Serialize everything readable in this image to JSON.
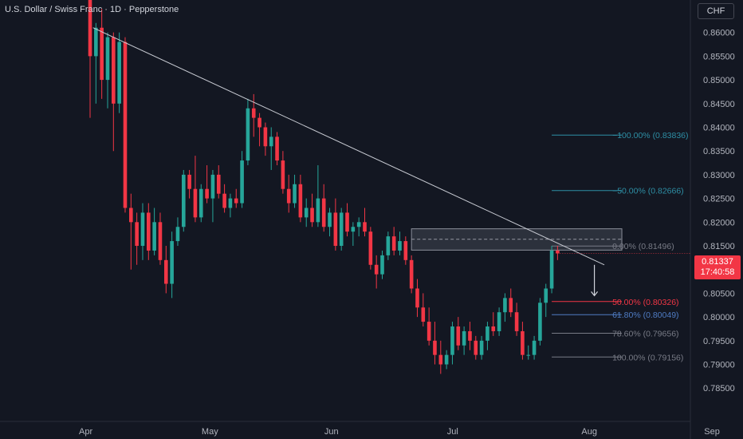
{
  "header": {
    "title": "U.S. Dollar / Swiss Franc · 1D · Pepperstone",
    "currency_button": "CHF"
  },
  "price_tag": {
    "price": "0.81337",
    "countdown": "17:40:58"
  },
  "colors": {
    "up": "#26a69a",
    "down": "#f23645",
    "background": "#131722",
    "text": "#b2b5be"
  },
  "chart_data": {
    "type": "candlestick",
    "title": "U.S. Dollar / Swiss Franc · 1D · Pepperstone",
    "ylim": [
      0.781,
      0.8655
    ],
    "y_ticks": [
      "0.86000",
      "0.85500",
      "0.85000",
      "0.84500",
      "0.84000",
      "0.83500",
      "0.83000",
      "0.82500",
      "0.82000",
      "0.81500",
      "0.81000",
      "0.80500",
      "0.80000",
      "0.79500",
      "0.79000",
      "0.78500"
    ],
    "x_labels": [
      {
        "label": "Apr",
        "bar": 0
      },
      {
        "label": "May",
        "bar": 21
      },
      {
        "label": "Jun",
        "bar": 42
      },
      {
        "label": "Jul",
        "bar": 63
      },
      {
        "label": "Aug",
        "bar": 86
      },
      {
        "label": "Sep",
        "bar": 107
      }
    ],
    "candles": [
      [
        0.872,
        0.885,
        0.842,
        0.855
      ],
      [
        0.855,
        0.862,
        0.845,
        0.861
      ],
      [
        0.861,
        0.865,
        0.846,
        0.85
      ],
      [
        0.85,
        0.86,
        0.844,
        0.859
      ],
      [
        0.859,
        0.86,
        0.835,
        0.845
      ],
      [
        0.845,
        0.86,
        0.843,
        0.858
      ],
      [
        0.858,
        0.859,
        0.822,
        0.823
      ],
      [
        0.823,
        0.826,
        0.81,
        0.82
      ],
      [
        0.82,
        0.822,
        0.811,
        0.815
      ],
      [
        0.815,
        0.824,
        0.812,
        0.822
      ],
      [
        0.822,
        0.824,
        0.812,
        0.814
      ],
      [
        0.814,
        0.823,
        0.813,
        0.82
      ],
      [
        0.82,
        0.822,
        0.811,
        0.812
      ],
      [
        0.812,
        0.815,
        0.805,
        0.807
      ],
      [
        0.807,
        0.818,
        0.804,
        0.816
      ],
      [
        0.816,
        0.821,
        0.815,
        0.819
      ],
      [
        0.819,
        0.831,
        0.818,
        0.83
      ],
      [
        0.83,
        0.831,
        0.825,
        0.827
      ],
      [
        0.827,
        0.834,
        0.82,
        0.821
      ],
      [
        0.821,
        0.828,
        0.82,
        0.827
      ],
      [
        0.827,
        0.832,
        0.824,
        0.825
      ],
      [
        0.825,
        0.831,
        0.82,
        0.83
      ],
      [
        0.83,
        0.832,
        0.825,
        0.826
      ],
      [
        0.826,
        0.828,
        0.822,
        0.823
      ],
      [
        0.823,
        0.826,
        0.821,
        0.825
      ],
      [
        0.825,
        0.827,
        0.823,
        0.824
      ],
      [
        0.824,
        0.835,
        0.823,
        0.833
      ],
      [
        0.833,
        0.846,
        0.832,
        0.844
      ],
      [
        0.844,
        0.847,
        0.838,
        0.842
      ],
      [
        0.842,
        0.843,
        0.836,
        0.84
      ],
      [
        0.84,
        0.841,
        0.834,
        0.836
      ],
      [
        0.836,
        0.84,
        0.831,
        0.838
      ],
      [
        0.838,
        0.839,
        0.832,
        0.833
      ],
      [
        0.833,
        0.835,
        0.826,
        0.827
      ],
      [
        0.827,
        0.83,
        0.822,
        0.824
      ],
      [
        0.824,
        0.83,
        0.823,
        0.828
      ],
      [
        0.828,
        0.83,
        0.82,
        0.821
      ],
      [
        0.821,
        0.825,
        0.819,
        0.823
      ],
      [
        0.823,
        0.826,
        0.819,
        0.82
      ],
      [
        0.82,
        0.832,
        0.819,
        0.825
      ],
      [
        0.825,
        0.828,
        0.818,
        0.819
      ],
      [
        0.819,
        0.823,
        0.817,
        0.822
      ],
      [
        0.822,
        0.825,
        0.814,
        0.815
      ],
      [
        0.815,
        0.823,
        0.814,
        0.822
      ],
      [
        0.822,
        0.824,
        0.817,
        0.818
      ],
      [
        0.818,
        0.82,
        0.815,
        0.819
      ],
      [
        0.819,
        0.821,
        0.817,
        0.82
      ],
      [
        0.82,
        0.823,
        0.817,
        0.818
      ],
      [
        0.818,
        0.819,
        0.81,
        0.811
      ],
      [
        0.811,
        0.813,
        0.806,
        0.809
      ],
      [
        0.809,
        0.814,
        0.808,
        0.813
      ],
      [
        0.813,
        0.818,
        0.812,
        0.817
      ],
      [
        0.817,
        0.819,
        0.813,
        0.814
      ],
      [
        0.814,
        0.818,
        0.813,
        0.816
      ],
      [
        0.816,
        0.817,
        0.811,
        0.812
      ],
      [
        0.812,
        0.813,
        0.805,
        0.806
      ],
      [
        0.806,
        0.808,
        0.8,
        0.802
      ],
      [
        0.802,
        0.805,
        0.798,
        0.799
      ],
      [
        0.799,
        0.802,
        0.794,
        0.795
      ],
      [
        0.795,
        0.799,
        0.79,
        0.792
      ],
      [
        0.792,
        0.795,
        0.788,
        0.79
      ],
      [
        0.79,
        0.793,
        0.789,
        0.792
      ],
      [
        0.792,
        0.799,
        0.79,
        0.798
      ],
      [
        0.798,
        0.8,
        0.793,
        0.794
      ],
      [
        0.794,
        0.798,
        0.792,
        0.797
      ],
      [
        0.797,
        0.799,
        0.793,
        0.795
      ],
      [
        0.795,
        0.796,
        0.791,
        0.792
      ],
      [
        0.792,
        0.796,
        0.791,
        0.795
      ],
      [
        0.795,
        0.799,
        0.793,
        0.798
      ],
      [
        0.798,
        0.801,
        0.796,
        0.797
      ],
      [
        0.797,
        0.802,
        0.796,
        0.801
      ],
      [
        0.801,
        0.805,
        0.799,
        0.804
      ],
      [
        0.804,
        0.806,
        0.8,
        0.801
      ],
      [
        0.801,
        0.803,
        0.796,
        0.797
      ],
      [
        0.797,
        0.799,
        0.791,
        0.792
      ],
      [
        0.792,
        0.794,
        0.791,
        0.792
      ],
      [
        0.792,
        0.796,
        0.791,
        0.795
      ],
      [
        0.795,
        0.804,
        0.794,
        0.803
      ],
      [
        0.803,
        0.807,
        0.8,
        0.806
      ],
      [
        0.806,
        0.815,
        0.805,
        0.814
      ],
      [
        0.814,
        0.815,
        0.812,
        0.8134
      ]
    ],
    "trendline": {
      "from": {
        "bar": 0.5,
        "price": 0.861
      },
      "to": {
        "bar": 88,
        "price": 0.811
      }
    },
    "resistance_zone": {
      "from_bar": 55,
      "to_bar": 91,
      "top": 0.8186,
      "bottom": 0.8141,
      "mid": 0.8164
    },
    "fib_levels": [
      {
        "label": "−100.00% (0.83836)",
        "price": 0.83836,
        "color": "#2e8fa5",
        "from_bar": 79,
        "to_bar": 91
      },
      {
        "label": "−50.00% (0.82666)",
        "price": 0.82666,
        "color": "#2e8fa5",
        "from_bar": 79,
        "to_bar": 91
      },
      {
        "label": "0.00% (0.81496)",
        "price": 0.81496,
        "color": "#787b86",
        "from_bar": 79,
        "to_bar": 91
      },
      {
        "label": "50.00% (0.80326)",
        "price": 0.80326,
        "color": "#f23645",
        "from_bar": 79,
        "to_bar": 91
      },
      {
        "label": "61.80% (0.80049)",
        "price": 0.80049,
        "color": "#4f7cc4",
        "from_bar": 79,
        "to_bar": 91
      },
      {
        "label": "78.60% (0.79656)",
        "price": 0.79656,
        "color": "#787b86",
        "from_bar": 79,
        "to_bar": 91
      },
      {
        "label": "100.00% (0.79156)",
        "price": 0.79156,
        "color": "#787b86",
        "from_bar": 79,
        "to_bar": 91
      }
    ],
    "arrow": {
      "bar": 86.3,
      "from": 0.811,
      "to": 0.8045
    }
  }
}
